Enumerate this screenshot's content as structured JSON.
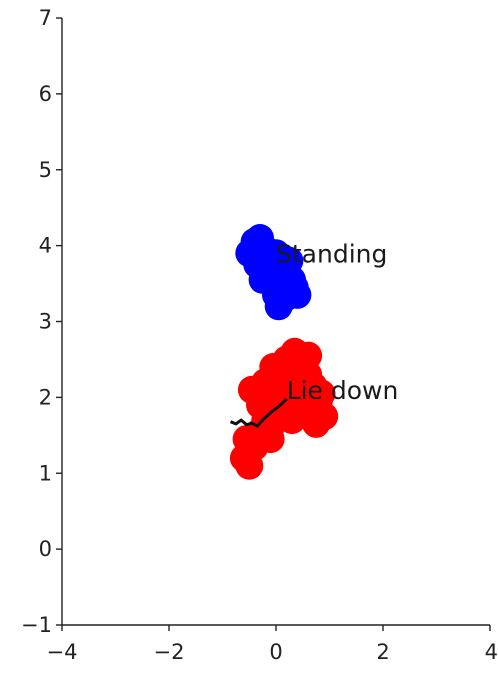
{
  "chart_data": {
    "type": "scatter",
    "xlim": [
      -4,
      4
    ],
    "ylim": [
      -1,
      7
    ],
    "xticks": [
      -4,
      -2,
      0,
      2,
      4
    ],
    "yticks": [
      -1,
      0,
      1,
      2,
      3,
      4,
      5,
      6,
      7
    ],
    "grid": false,
    "series": [
      {
        "color": "#0000ff",
        "points": [
          [
            -0.5,
            3.9
          ],
          [
            -0.4,
            4.05
          ],
          [
            -0.3,
            4.1
          ],
          [
            -0.2,
            3.95
          ],
          [
            -0.35,
            3.75
          ],
          [
            -0.15,
            3.8
          ],
          [
            0.0,
            3.9
          ],
          [
            0.1,
            3.85
          ],
          [
            0.2,
            3.7
          ],
          [
            0.3,
            3.55
          ],
          [
            0.1,
            3.5
          ],
          [
            0.0,
            3.35
          ],
          [
            0.05,
            3.2
          ],
          [
            0.15,
            3.3
          ],
          [
            0.35,
            3.45
          ],
          [
            -0.1,
            3.6
          ],
          [
            0.25,
            3.8
          ],
          [
            -0.25,
            3.55
          ],
          [
            0.4,
            3.35
          ],
          [
            0.0,
            3.6
          ]
        ]
      },
      {
        "color": "#ff0000",
        "points": [
          [
            -0.6,
            1.2
          ],
          [
            -0.5,
            1.1
          ],
          [
            -0.4,
            1.35
          ],
          [
            -0.55,
            1.45
          ],
          [
            -0.3,
            1.55
          ],
          [
            -0.2,
            1.7
          ],
          [
            -0.1,
            1.6
          ],
          [
            0.0,
            1.75
          ],
          [
            -0.3,
            1.9
          ],
          [
            -0.45,
            2.1
          ],
          [
            -0.2,
            2.2
          ],
          [
            0.0,
            2.05
          ],
          [
            0.1,
            1.9
          ],
          [
            0.2,
            2.1
          ],
          [
            0.3,
            2.3
          ],
          [
            0.2,
            2.5
          ],
          [
            0.35,
            2.6
          ],
          [
            0.5,
            2.45
          ],
          [
            0.6,
            2.3
          ],
          [
            0.7,
            2.15
          ],
          [
            0.8,
            1.95
          ],
          [
            0.9,
            1.75
          ],
          [
            0.75,
            1.65
          ],
          [
            0.5,
            1.8
          ],
          [
            0.4,
            2.0
          ],
          [
            0.15,
            2.35
          ],
          [
            -0.05,
            2.4
          ],
          [
            0.6,
            2.55
          ],
          [
            0.3,
            1.7
          ],
          [
            -0.1,
            1.45
          ],
          [
            0.85,
            2.05
          ],
          [
            0.45,
            2.2
          ]
        ]
      },
      {
        "type": "line",
        "color": "#111111",
        "points": [
          [
            -0.85,
            1.68
          ],
          [
            -0.75,
            1.65
          ],
          [
            -0.65,
            1.7
          ],
          [
            -0.55,
            1.64
          ],
          [
            -0.45,
            1.66
          ],
          [
            -0.35,
            1.62
          ],
          [
            -0.25,
            1.7
          ],
          [
            -0.1,
            1.8
          ],
          [
            0.05,
            1.88
          ],
          [
            0.2,
            1.98
          ]
        ]
      }
    ],
    "annotations": [
      {
        "text": "Standing",
        "x": 0.0,
        "y": 3.78
      },
      {
        "text": "Lie down",
        "x": 0.2,
        "y": 1.98
      }
    ]
  }
}
